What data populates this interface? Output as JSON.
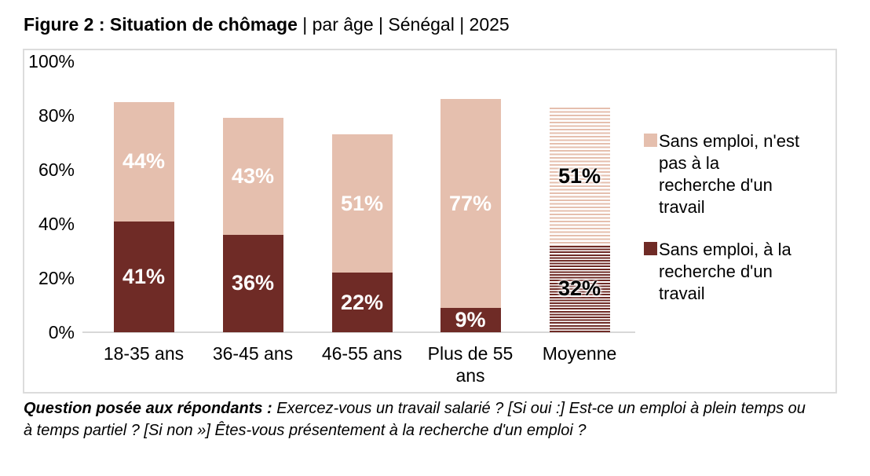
{
  "title": {
    "bold": "Figure 2 : Situation de chômage",
    "rest": " | par âge | Sénégal | 2025"
  },
  "chart_data": {
    "type": "bar",
    "stacked": true,
    "title": "Figure 2 : Situation de chômage | par âge | Sénégal | 2025",
    "categories": [
      "18-35 ans",
      "36-45 ans",
      "46-55 ans",
      "Plus de 55 ans",
      "Moyenne"
    ],
    "series": [
      {
        "name": "Sans emploi, à la recherche d'un travail",
        "stack_position": "bottom",
        "color": "#6F2B26",
        "values": [
          41,
          36,
          22,
          9,
          32
        ]
      },
      {
        "name": "Sans emploi, n'est pas à la recherche d'un travail",
        "stack_position": "top",
        "color": "#E5BFAE",
        "values": [
          44,
          43,
          51,
          77,
          51
        ]
      }
    ],
    "value_label_suffix": "%",
    "value_label_color": "#FFFFFF",
    "hatched_category": "Moyenne",
    "hatched_value_label_color": "#000000",
    "ylim": [
      0,
      100
    ],
    "yticks": [
      0,
      20,
      40,
      60,
      80,
      100
    ],
    "ytick_suffix": "%",
    "xlabel": "",
    "ylabel": "",
    "grid": false,
    "legend_position": "right"
  },
  "legend": {
    "items": [
      {
        "label": "Sans emploi, n'est\npas à la\nrecherche d'un\ntravail",
        "color": "#E5BFAE"
      },
      {
        "label": "Sans emploi, à la\nrecherche d'un\ntravail",
        "color": "#6F2B26"
      }
    ]
  },
  "footnote": {
    "bold": "Question posée aux répondants :",
    "rest": " Exercez-vous un travail salarié ? [Si oui :] Est-ce un emploi à plein temps ou à temps partiel ? [Si non »] Êtes-vous présentement à la recherche d'un emploi ?"
  },
  "colors": {
    "bar_dark": "#6F2B26",
    "bar_light": "#E5BFAE",
    "frame_border": "#DCDCDC",
    "axis_line": "#D8D8D8",
    "background": "#FFFFFF"
  }
}
